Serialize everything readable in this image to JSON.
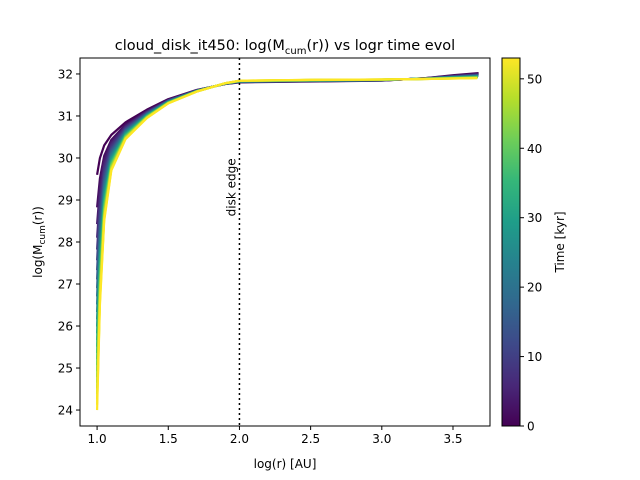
{
  "chart_data": {
    "type": "line",
    "title_main": "cloud_disk_it450: log(M",
    "title_sub": "cum",
    "title_end": "(r)) vs logr time evol",
    "xlabel": "log(r) [AU]",
    "ylabel_main": "log(M",
    "ylabel_sub": "cum",
    "ylabel_end": "(r))",
    "xlim": [
      0.88,
      3.76
    ],
    "ylim": [
      23.62,
      32.38
    ],
    "xticks": [
      "1.0",
      "1.5",
      "2.0",
      "2.5",
      "3.0",
      "3.5"
    ],
    "yticks": [
      "24",
      "25",
      "26",
      "27",
      "28",
      "29",
      "30",
      "31",
      "32"
    ],
    "grid": false,
    "annotation": {
      "text": "disk edge",
      "x": 2.0
    },
    "colorbar": {
      "label": "Time [kyr]",
      "range": [
        0,
        53
      ],
      "ticks": [
        "0",
        "10",
        "20",
        "30",
        "40",
        "50"
      ],
      "colormap": "viridis"
    },
    "series_time_range": [
      0,
      53
    ],
    "series_count": 28,
    "curve_template": {
      "x": [
        1.0,
        1.02,
        1.05,
        1.1,
        1.2,
        1.35,
        1.5,
        1.7,
        1.9,
        2.0,
        2.5,
        3.0,
        3.3,
        3.5,
        3.68
      ],
      "y_late": [
        24.0,
        26.5,
        28.5,
        29.7,
        30.45,
        30.95,
        31.3,
        31.58,
        31.78,
        31.84,
        31.86,
        31.87,
        31.88,
        31.89,
        31.9
      ],
      "y_early": [
        29.6,
        30.0,
        30.3,
        30.55,
        30.85,
        31.15,
        31.4,
        31.62,
        31.76,
        31.8,
        31.82,
        31.84,
        31.9,
        31.97,
        32.02
      ]
    }
  }
}
